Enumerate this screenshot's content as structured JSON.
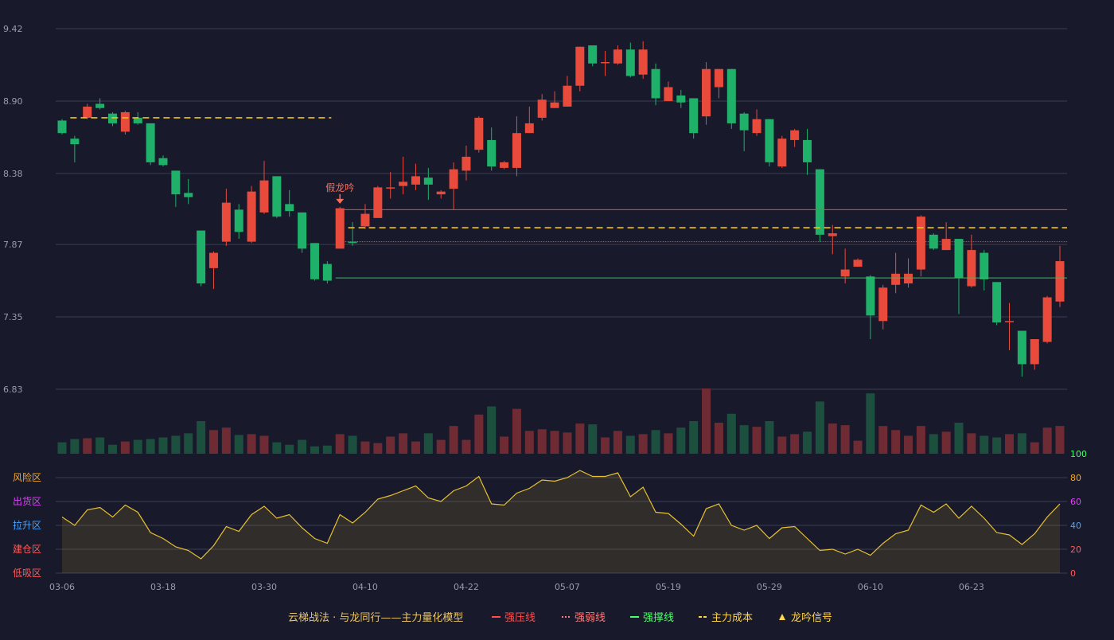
{
  "chart_data": {
    "type": "candlestick",
    "title": "",
    "price_axis": {
      "ticks": [
        "9.42",
        "8.90",
        "8.38",
        "7.87",
        "7.35",
        "6.83"
      ],
      "range": [
        6.83,
        9.42
      ]
    },
    "indicator_axis": {
      "ticks": [
        "100",
        "80",
        "60",
        "40",
        "20",
        "0"
      ],
      "range": [
        0,
        100
      ]
    },
    "zone_labels": [
      {
        "label": "风险区",
        "color": "#f5a623"
      },
      {
        "label": "出货区",
        "color": "#e040fb"
      },
      {
        "label": "拉升区",
        "color": "#4aa3ff"
      },
      {
        "label": "建仓区",
        "color": "#ff5a5a"
      },
      {
        "label": "低吸区",
        "color": "#ff5a5a"
      }
    ],
    "x_tick_labels": [
      {
        "index": 0,
        "label": "03-06"
      },
      {
        "index": 8,
        "label": "03-18"
      },
      {
        "index": 16,
        "label": "03-30"
      },
      {
        "index": 24,
        "label": "04-10"
      },
      {
        "index": 32,
        "label": "04-22"
      },
      {
        "index": 40,
        "label": "05-07"
      },
      {
        "index": 48,
        "label": "05-19"
      },
      {
        "index": 56,
        "label": "05-29"
      },
      {
        "index": 64,
        "label": "06-10"
      },
      {
        "index": 72,
        "label": "06-23"
      }
    ],
    "candles": [
      [
        8.76,
        8.67,
        8.77,
        8.66
      ],
      [
        8.63,
        8.59,
        8.65,
        8.46
      ],
      [
        8.78,
        8.86,
        8.88,
        8.77
      ],
      [
        8.88,
        8.85,
        8.92,
        8.84
      ],
      [
        8.81,
        8.74,
        8.82,
        8.72
      ],
      [
        8.68,
        8.82,
        8.83,
        8.66
      ],
      [
        8.78,
        8.74,
        8.82,
        8.73
      ],
      [
        8.74,
        8.46,
        8.74,
        8.44
      ],
      [
        8.49,
        8.44,
        8.51,
        8.43
      ],
      [
        8.4,
        8.23,
        8.4,
        8.14
      ],
      [
        8.24,
        8.21,
        8.34,
        8.16
      ],
      [
        7.97,
        7.59,
        7.97,
        7.57
      ],
      [
        7.7,
        7.81,
        7.82,
        7.55
      ],
      [
        7.89,
        8.17,
        8.27,
        7.86
      ],
      [
        8.12,
        7.96,
        8.16,
        7.91
      ],
      [
        7.89,
        8.25,
        8.29,
        7.88
      ],
      [
        8.1,
        8.33,
        8.47,
        8.09
      ],
      [
        8.36,
        8.07,
        8.36,
        8.06
      ],
      [
        8.16,
        8.11,
        8.26,
        8.07
      ],
      [
        8.1,
        7.84,
        8.1,
        7.81
      ],
      [
        7.88,
        7.62,
        7.88,
        7.61
      ],
      [
        7.73,
        7.61,
        7.75,
        7.59
      ],
      [
        7.84,
        8.13,
        8.14,
        7.84
      ],
      [
        7.89,
        7.88,
        8.03,
        7.86
      ],
      [
        8.0,
        8.09,
        8.16,
        7.98
      ],
      [
        8.06,
        8.28,
        8.29,
        8.06
      ],
      [
        8.28,
        8.28,
        8.39,
        8.2
      ],
      [
        8.29,
        8.32,
        8.5,
        8.23
      ],
      [
        8.3,
        8.36,
        8.45,
        8.26
      ],
      [
        8.35,
        8.3,
        8.42,
        8.19
      ],
      [
        8.23,
        8.25,
        8.26,
        8.2
      ],
      [
        8.27,
        8.41,
        8.46,
        8.12
      ],
      [
        8.4,
        8.5,
        8.58,
        8.33
      ],
      [
        8.55,
        8.78,
        8.79,
        8.53
      ],
      [
        8.62,
        8.43,
        8.71,
        8.4
      ],
      [
        8.42,
        8.46,
        8.47,
        8.41
      ],
      [
        8.42,
        8.67,
        8.79,
        8.36
      ],
      [
        8.67,
        8.74,
        8.86,
        8.67
      ],
      [
        8.78,
        8.91,
        8.95,
        8.76
      ],
      [
        8.85,
        8.89,
        8.97,
        8.85
      ],
      [
        8.86,
        9.01,
        9.08,
        8.86
      ],
      [
        9.01,
        9.29,
        9.29,
        8.97
      ],
      [
        9.3,
        9.17,
        9.3,
        9.15
      ],
      [
        9.18,
        9.18,
        9.26,
        9.08
      ],
      [
        9.17,
        9.27,
        9.3,
        9.16
      ],
      [
        9.27,
        9.08,
        9.32,
        9.07
      ],
      [
        9.09,
        9.27,
        9.33,
        9.06
      ],
      [
        9.13,
        8.92,
        9.17,
        8.87
      ],
      [
        8.9,
        9.0,
        9.04,
        8.9
      ],
      [
        8.94,
        8.89,
        8.98,
        8.85
      ],
      [
        8.92,
        8.67,
        8.92,
        8.63
      ],
      [
        8.79,
        9.13,
        9.18,
        8.73
      ],
      [
        9.0,
        9.13,
        9.13,
        8.92
      ],
      [
        9.13,
        8.74,
        9.13,
        8.7
      ],
      [
        8.81,
        8.69,
        8.82,
        8.54
      ],
      [
        8.67,
        8.77,
        8.84,
        8.65
      ],
      [
        8.77,
        8.46,
        8.77,
        8.43
      ],
      [
        8.43,
        8.63,
        8.65,
        8.42
      ],
      [
        8.62,
        8.69,
        8.7,
        8.57
      ],
      [
        8.62,
        8.46,
        8.7,
        8.37
      ],
      [
        8.41,
        7.94,
        8.41,
        7.89
      ],
      [
        7.93,
        7.95,
        8.01,
        7.8
      ],
      [
        7.64,
        7.69,
        7.84,
        7.59
      ],
      [
        7.71,
        7.76,
        7.77,
        7.71
      ],
      [
        7.64,
        7.36,
        7.65,
        7.19
      ],
      [
        7.32,
        7.56,
        7.58,
        7.26
      ],
      [
        7.58,
        7.66,
        7.81,
        7.52
      ],
      [
        7.59,
        7.66,
        7.77,
        7.56
      ],
      [
        7.69,
        8.07,
        8.08,
        7.64
      ],
      [
        7.94,
        7.84,
        7.95,
        7.83
      ],
      [
        7.83,
        7.91,
        8.03,
        7.83
      ],
      [
        7.91,
        7.63,
        7.91,
        7.37
      ],
      [
        7.57,
        7.83,
        7.94,
        7.56
      ],
      [
        7.81,
        7.62,
        7.83,
        7.54
      ],
      [
        7.6,
        7.31,
        7.6,
        7.29
      ],
      [
        7.32,
        7.32,
        7.45,
        7.11
      ],
      [
        7.25,
        7.01,
        7.25,
        6.92
      ],
      [
        7.01,
        7.19,
        7.19,
        6.97
      ],
      [
        7.17,
        7.49,
        7.5,
        7.16
      ],
      [
        7.46,
        7.75,
        7.86,
        7.42
      ]
    ],
    "volume": [
      14,
      18,
      19,
      20,
      11,
      15,
      17,
      18,
      20,
      22,
      25,
      40,
      29,
      32,
      23,
      24,
      22,
      14,
      11,
      17,
      9,
      10,
      24,
      22,
      15,
      13,
      21,
      25,
      15,
      25,
      17,
      34,
      17,
      48,
      58,
      21,
      55,
      28,
      30,
      28,
      26,
      37,
      36,
      20,
      28,
      22,
      24,
      29,
      25,
      32,
      40,
      80,
      38,
      49,
      35,
      33,
      40,
      21,
      24,
      27,
      64,
      37,
      35,
      16,
      74,
      34,
      29,
      22,
      34,
      24,
      27,
      38,
      25,
      22,
      20,
      24,
      25,
      14,
      32,
      34
    ],
    "indicator": [
      47,
      40,
      53,
      55,
      47,
      57,
      51,
      34,
      29,
      22,
      19,
      12,
      23,
      39,
      35,
      49,
      56,
      46,
      49,
      38,
      29,
      25,
      49,
      42,
      51,
      62,
      65,
      69,
      73,
      63,
      60,
      69,
      73,
      81,
      58,
      57,
      67,
      71,
      78,
      77,
      80,
      86,
      81,
      81,
      84,
      64,
      72,
      51,
      50,
      41,
      31,
      54,
      58,
      40,
      36,
      40,
      29,
      38,
      39,
      29,
      19,
      20,
      16,
      20,
      15,
      25,
      33,
      36,
      57,
      51,
      58,
      46,
      56,
      46,
      34,
      32,
      24,
      33,
      47,
      58
    ],
    "lines": [
      {
        "name": "强压线",
        "price": 8.12,
        "from_index": 22,
        "color": "#e84b3c",
        "style": "solid"
      },
      {
        "name": "强弱线",
        "price": 7.89,
        "from_index": 22,
        "color": "#e84b3c",
        "style": "dotted"
      },
      {
        "name": "强撑线",
        "price": 7.63,
        "from_index": 22,
        "color": "#31c35a",
        "style": "solid"
      },
      {
        "name": "主力成本",
        "price": 8.78,
        "from_index": 1,
        "to_index": 21,
        "color": "#f0c419",
        "style": "dashed"
      },
      {
        "name": "主力成本",
        "price": 7.99,
        "from_index": 23,
        "color": "#f0c419",
        "style": "dashed"
      }
    ],
    "annotation": {
      "text": "假龙吟",
      "index": 22,
      "color": "#ff6b5b"
    },
    "colors": {
      "up": "#e84b3c",
      "down": "#1fb16a",
      "grid": "#3a3d52",
      "indicator_line": "#e8c031"
    }
  },
  "legend": {
    "title": "云梯战法 · 与龙同行——主力量化模型",
    "items": [
      {
        "label": "强压线",
        "color": "#ff4d4d",
        "icon": "solid-line-icon"
      },
      {
        "label": "强弱线",
        "color": "#ff7b7b",
        "icon": "dotted-line-icon"
      },
      {
        "label": "强撑线",
        "color": "#4cff6a",
        "icon": "solid-line-icon"
      },
      {
        "label": "主力成本",
        "color": "#ffd54a",
        "icon": "dashed-line-icon"
      },
      {
        "label": "龙吟信号",
        "color": "#ffd54a",
        "icon": "triangle-icon"
      }
    ]
  }
}
